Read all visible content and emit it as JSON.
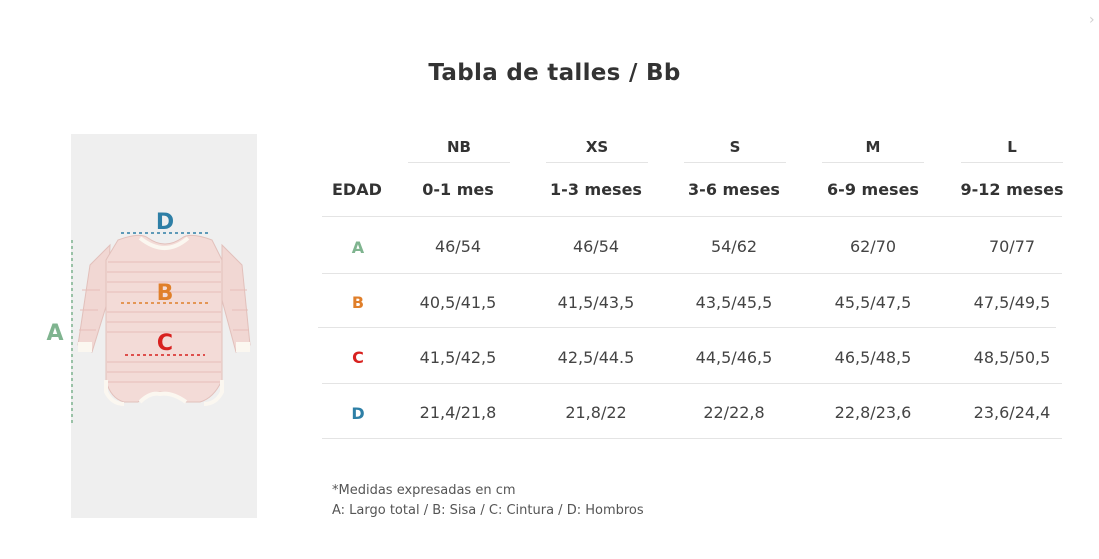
{
  "title": "Tabla de talles / Bb",
  "close_glyph": "›",
  "colors": {
    "A": "#7fb48f",
    "B": "#e07f2a",
    "C": "#d8211f",
    "D": "#2e7fa6"
  },
  "figure": {
    "label_a": "A",
    "label_b": "B",
    "label_c": "C",
    "label_d": "D"
  },
  "table": {
    "row_header": "EDAD",
    "sizes": [
      "NB",
      "XS",
      "S",
      "M",
      "L"
    ],
    "ages": [
      "0-1 mes",
      "1-3 meses",
      "3-6 meses",
      "6-9 meses",
      "9-12 meses"
    ],
    "rows": [
      {
        "label": "A",
        "values": [
          "46/54",
          "46/54",
          "54/62",
          "62/70",
          "70/77"
        ]
      },
      {
        "label": "B",
        "values": [
          "40,5/41,5",
          "41,5/43,5",
          "43,5/45,5",
          "45,5/47,5",
          "47,5/49,5"
        ]
      },
      {
        "label": "C",
        "values": [
          "41,5/42,5",
          "42,5/44.5",
          "44,5/46,5",
          "46,5/48,5",
          "48,5/50,5"
        ]
      },
      {
        "label": "D",
        "values": [
          "21,4/21,8",
          "21,8/22",
          "22/22,8",
          "22,8/23,6",
          "23,6/24,4"
        ]
      }
    ]
  },
  "notes": {
    "line1": "*Medidas expresadas en cm",
    "line2": "A: Largo total / B: Sisa / C: Cintura / D: Hombros"
  }
}
